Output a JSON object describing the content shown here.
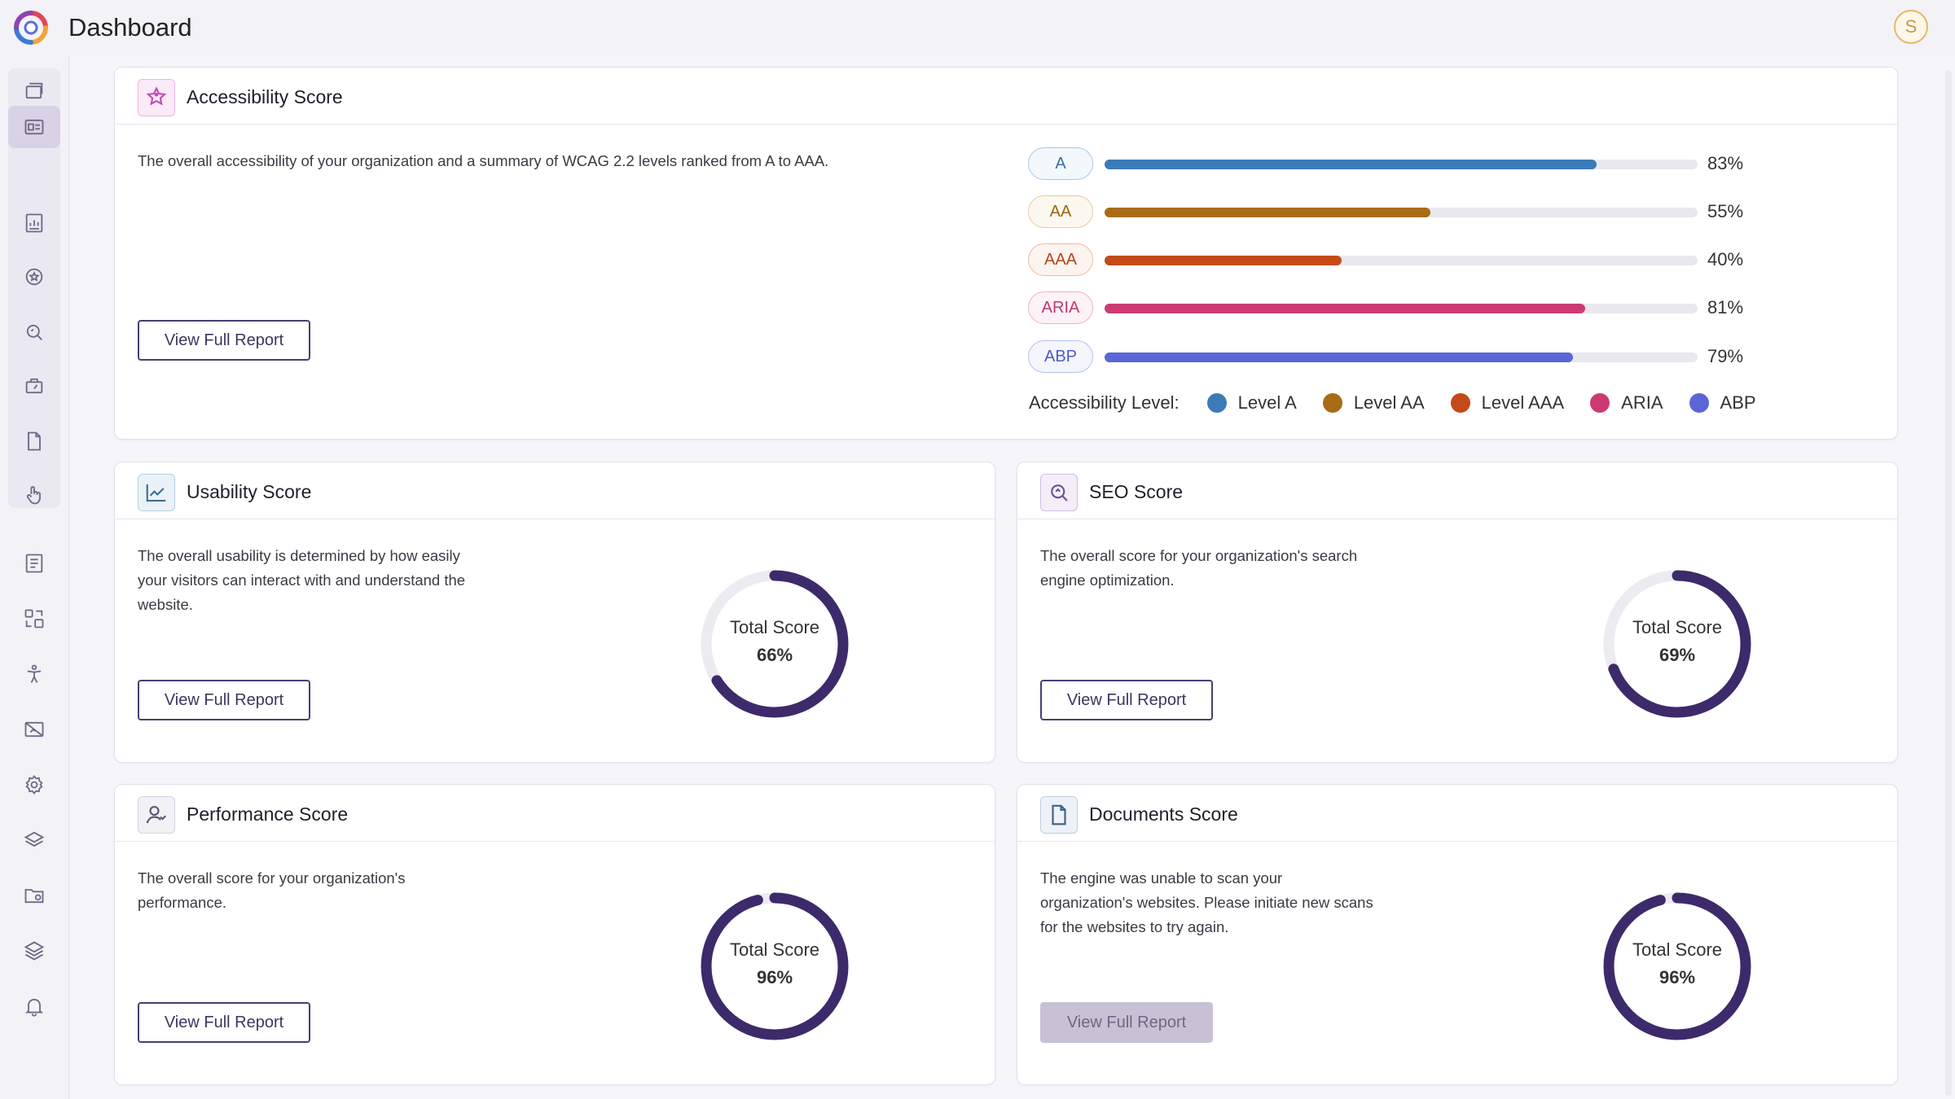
{
  "header": {
    "title": "Dashboard",
    "avatar_initial": "S",
    "logo_icon": "rainbow-swirl-logo"
  },
  "sidebar": {
    "items": [
      {
        "icon": "windows-icon"
      },
      {
        "icon": "dashboard-icon",
        "active": true
      },
      {
        "icon": "report-icon"
      },
      {
        "icon": "badge-icon"
      },
      {
        "icon": "search-icon"
      },
      {
        "icon": "speed-icon"
      },
      {
        "icon": "document-icon"
      },
      {
        "icon": "touch-icon"
      },
      {
        "icon": "list-icon"
      },
      {
        "icon": "components-icon"
      },
      {
        "icon": "accessibility-icon"
      },
      {
        "icon": "no-image-icon"
      },
      {
        "icon": "settings-icon"
      },
      {
        "icon": "layers-icon"
      },
      {
        "icon": "folder-settings-icon"
      },
      {
        "icon": "stack-icon"
      },
      {
        "icon": "bell-icon"
      }
    ]
  },
  "accessibility": {
    "title": "Accessibility Score",
    "description": "The overall accessibility of your organization and a summary of WCAG 2.2 levels ranked from A to AAA.",
    "button": "View Full Report",
    "bars": [
      {
        "label": "A",
        "value": 83,
        "pct_text": "83%",
        "color": "#3b7bb8",
        "text_color": "#3b6ea6",
        "border": "#a9c7e6",
        "bg": "#f3f8fd"
      },
      {
        "label": "AA",
        "value": 55,
        "pct_text": "55%",
        "color": "#a86d14",
        "text_color": "#9a6412",
        "border": "#e6cc9f",
        "bg": "#fdf8ef"
      },
      {
        "label": "AAA",
        "value": 40,
        "pct_text": "40%",
        "color": "#c44a18",
        "text_color": "#b5441a",
        "border": "#efb9a0",
        "bg": "#fdf4ef"
      },
      {
        "label": "ARIA",
        "value": 81,
        "pct_text": "81%",
        "color": "#cc3a73",
        "text_color": "#c1386e",
        "border": "#efb2c9",
        "bg": "#fdf2f6"
      },
      {
        "label": "ABP",
        "value": 79,
        "pct_text": "79%",
        "color": "#5b66d6",
        "text_color": "#4d5bc5",
        "border": "#b7bdee",
        "bg": "#f4f5fd"
      }
    ],
    "legend": {
      "title": "Accessibility Level:",
      "items": [
        {
          "label": "Level A",
          "color": "#3b7bb8"
        },
        {
          "label": "Level AA",
          "color": "#a86d14"
        },
        {
          "label": "Level AAA",
          "color": "#c44a18"
        },
        {
          "label": "ARIA",
          "color": "#cc3a73"
        },
        {
          "label": "ABP",
          "color": "#5b66d6"
        }
      ]
    }
  },
  "usability": {
    "title": "Usability Score",
    "description": "The overall usability is determined by how easily your visitors can interact with and understand the website.",
    "button": "View Full Report",
    "donut_label": "Total Score",
    "value": 66,
    "value_text": "66%"
  },
  "seo": {
    "title": "SEO Score",
    "description": "The overall score for your organization's search engine optimization.",
    "button": "View Full Report",
    "donut_label": "Total Score",
    "value": 69,
    "value_text": "69%"
  },
  "performance": {
    "title": "Performance Score",
    "description": "The overall score for your organization's performance.",
    "button": "View Full Report",
    "donut_label": "Total Score",
    "value": 96,
    "value_text": "96%"
  },
  "documents": {
    "title": "Documents Score",
    "description": "The engine was unable to scan your organization's websites. Please initiate new scans for the websites to try again.",
    "button": "View Full Report",
    "button_disabled": true,
    "donut_label": "Total Score",
    "value": 96,
    "value_text": "96%"
  },
  "colors": {
    "accent": "#3d2a6b",
    "track": "#ecebf1"
  }
}
